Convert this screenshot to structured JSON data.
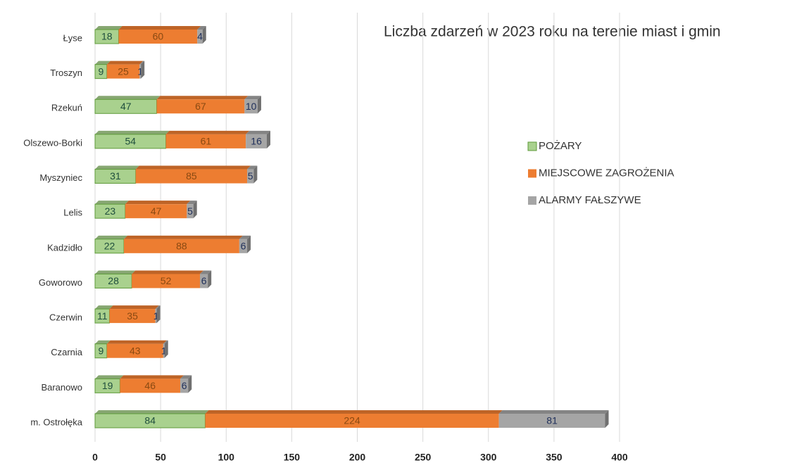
{
  "chart_data": {
    "type": "bar",
    "orientation": "horizontal",
    "stacked": true,
    "title": "Liczba zdarzeń w 2023 roku na terenie miast i gmin",
    "categories": [
      "Łyse",
      "Troszyn",
      "Rzekuń",
      "Olszewo-Borki",
      "Myszyniec",
      "Lelis",
      "Kadzidło",
      "Goworowo",
      "Czerwin",
      "Czarnia",
      "Baranowo",
      "m. Ostrołęka"
    ],
    "series": [
      {
        "name": "POŻARY",
        "color": "#a9d18e",
        "values": [
          18,
          9,
          47,
          54,
          31,
          23,
          22,
          28,
          11,
          9,
          19,
          84
        ]
      },
      {
        "name": "MIEJSCOWE ZAGROŻENIA",
        "color": "#ed7d31",
        "values": [
          60,
          25,
          67,
          61,
          85,
          47,
          88,
          52,
          35,
          43,
          46,
          224
        ]
      },
      {
        "name": "ALARMY FAŁSZYWE",
        "color": "#a5a5a5",
        "values": [
          4,
          1,
          10,
          16,
          5,
          5,
          6,
          6,
          1,
          1,
          6,
          81
        ]
      }
    ],
    "xlim": [
      0,
      400
    ],
    "xticks": [
      0,
      50,
      100,
      150,
      200,
      250,
      300,
      350,
      400
    ],
    "grid": true
  }
}
